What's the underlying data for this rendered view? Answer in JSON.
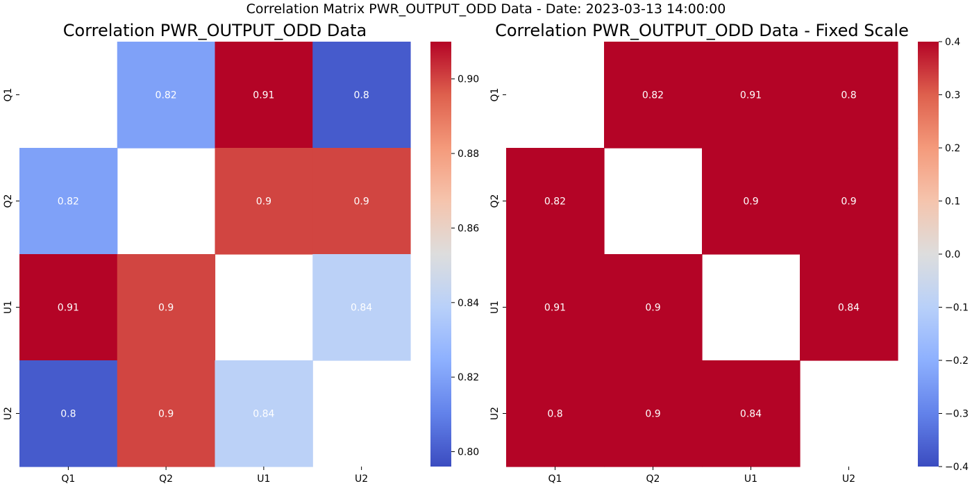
{
  "suptitle": "Correlation Matrix PWR_OUTPUT_ODD Data - Date: 2023-03-13 14:00:00",
  "chart_data": [
    {
      "type": "heatmap",
      "title": "Correlation PWR_OUTPUT_ODD Data",
      "x_categories": [
        "Q1",
        "Q2",
        "U1",
        "U2"
      ],
      "y_categories": [
        "Q1",
        "Q2",
        "U1",
        "U2"
      ],
      "values": [
        [
          null,
          0.82,
          0.91,
          0.8
        ],
        [
          0.82,
          null,
          0.9,
          0.9
        ],
        [
          0.91,
          0.9,
          null,
          0.84
        ],
        [
          0.8,
          0.9,
          0.84,
          null
        ]
      ],
      "annotations": [
        [
          "",
          "0.82",
          "0.91",
          "0.8"
        ],
        [
          "0.82",
          "",
          "0.9",
          "0.9"
        ],
        [
          "0.91",
          "0.9",
          "",
          "0.84"
        ],
        [
          "0.8",
          "0.9",
          "0.84",
          ""
        ]
      ],
      "colormap": "coolwarm",
      "vmin": 0.796,
      "vmax": 0.91,
      "colorbar_ticks": [
        0.8,
        0.82,
        0.84,
        0.86,
        0.88,
        0.9
      ],
      "colorbar_tick_labels": [
        "0.80",
        "0.82",
        "0.84",
        "0.86",
        "0.88",
        "0.90"
      ]
    },
    {
      "type": "heatmap",
      "title": "Correlation PWR_OUTPUT_ODD Data - Fixed Scale",
      "x_categories": [
        "Q1",
        "Q2",
        "U1",
        "U2"
      ],
      "y_categories": [
        "Q1",
        "Q2",
        "U1",
        "U2"
      ],
      "values": [
        [
          null,
          0.82,
          0.91,
          0.8
        ],
        [
          0.82,
          null,
          0.9,
          0.9
        ],
        [
          0.91,
          0.9,
          null,
          0.84
        ],
        [
          0.8,
          0.9,
          0.84,
          null
        ]
      ],
      "annotations": [
        [
          "",
          "0.82",
          "0.91",
          "0.8"
        ],
        [
          "0.82",
          "",
          "0.9",
          "0.9"
        ],
        [
          "0.91",
          "0.9",
          "",
          "0.84"
        ],
        [
          "0.8",
          "0.9",
          "0.84",
          ""
        ]
      ],
      "colormap": "coolwarm",
      "vmin": -0.4,
      "vmax": 0.4,
      "colorbar_ticks": [
        -0.4,
        -0.3,
        -0.2,
        -0.1,
        0.0,
        0.1,
        0.2,
        0.3,
        0.4
      ],
      "colorbar_tick_labels": [
        "−0.4",
        "−0.3",
        "−0.2",
        "−0.1",
        "0.0",
        "0.1",
        "0.2",
        "0.3",
        "0.4"
      ]
    }
  ]
}
